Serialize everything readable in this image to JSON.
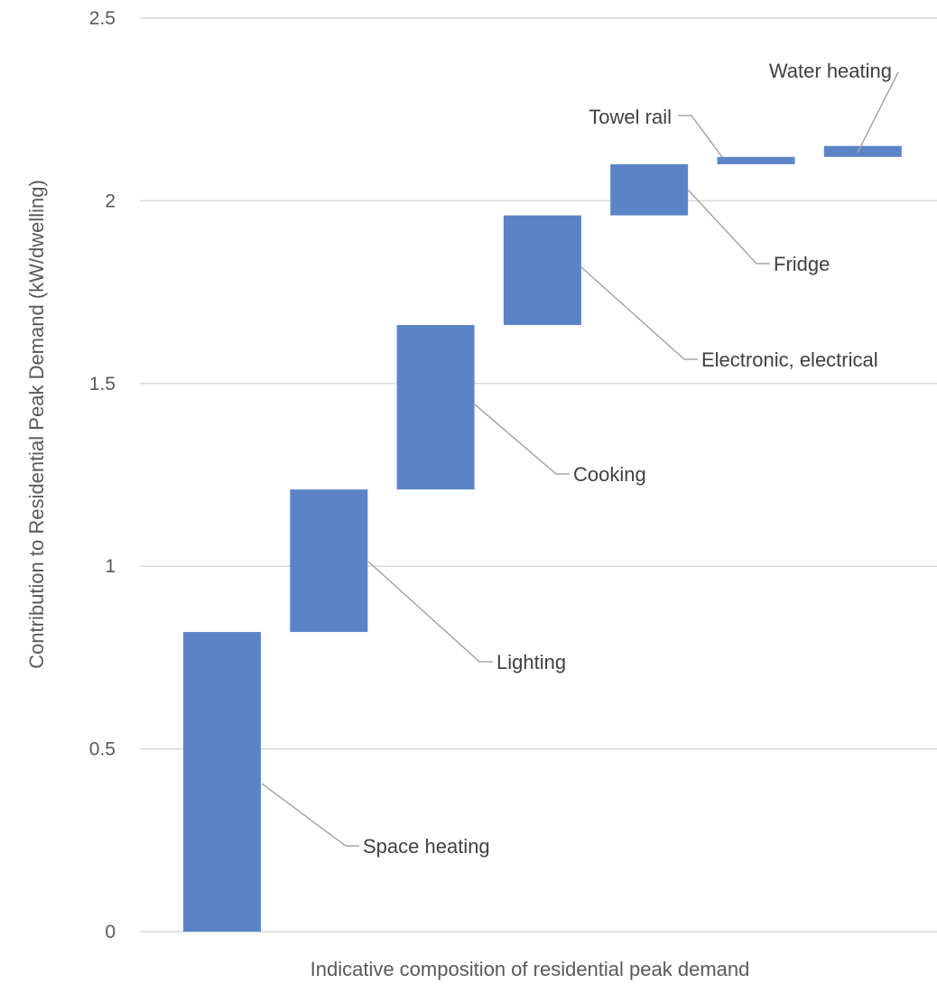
{
  "chart_data": {
    "type": "bar",
    "subtype": "waterfall",
    "xlabel": "Indicative composition of residential peak demand",
    "ylabel": "Contribution to Residential Peak Demand (kW/dwelling)",
    "ylim": [
      0,
      2.5
    ],
    "yticks": [
      "0",
      "0.5",
      "1",
      "1.5",
      "2",
      "2.5"
    ],
    "grid": true,
    "legend": "none",
    "bar_color": "#5b84c8",
    "categories": [
      "Space heating",
      "Lighting",
      "Cooking",
      "Electronic, electrical",
      "Fridge",
      "Towel rail",
      "Water heating"
    ],
    "values": [
      0.82,
      0.39,
      0.45,
      0.3,
      0.14,
      0.02,
      0.03
    ],
    "start": [
      0,
      0.82,
      1.21,
      1.66,
      1.96,
      2.1,
      2.12
    ],
    "end": [
      0.82,
      1.21,
      1.66,
      1.96,
      2.1,
      2.12,
      2.15
    ]
  }
}
